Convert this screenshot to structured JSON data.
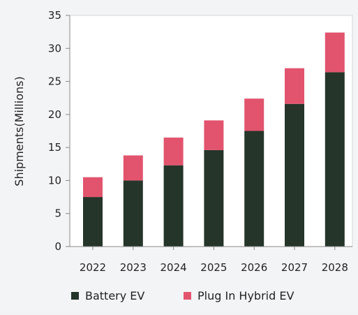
{
  "chart_data": {
    "type": "bar",
    "stacked": true,
    "categories": [
      "2022",
      "2023",
      "2024",
      "2025",
      "2026",
      "2027",
      "2028"
    ],
    "series": [
      {
        "name": "Battery EV",
        "color": "#253529",
        "values": [
          7.5,
          10.0,
          12.3,
          14.6,
          17.5,
          21.6,
          26.4
        ]
      },
      {
        "name": "Plug In Hybrid EV",
        "color": "#e2546e",
        "values": [
          3.0,
          3.8,
          4.2,
          4.5,
          4.9,
          5.4,
          6.0
        ]
      }
    ],
    "title": "",
    "xlabel": "",
    "ylabel": "Shipments(Millions)",
    "ylim": [
      0,
      35
    ],
    "yticks": [
      "0",
      "5",
      "10",
      "15",
      "20",
      "25",
      "30",
      "35"
    ],
    "grid": false,
    "legend_position": "bottom"
  }
}
